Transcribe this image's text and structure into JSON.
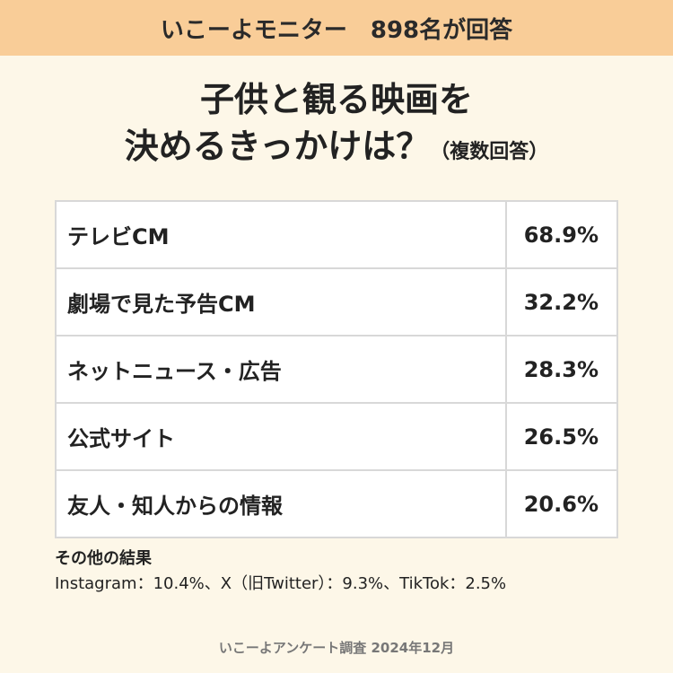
{
  "banner": "いこーよモニター　898名が回答",
  "title": {
    "line1": "子供と観る映画を",
    "line2": "決めるきっかけは？",
    "note": "（複数回答）"
  },
  "chart_data": {
    "type": "table",
    "rows": [
      {
        "label": "テレビCM",
        "value": "68.9%"
      },
      {
        "label": "劇場で見た予告CM",
        "value": "32.2%"
      },
      {
        "label": "ネットニュース・広告",
        "value": "28.3%"
      },
      {
        "label": "公式サイト",
        "value": "26.5%"
      },
      {
        "label": "友人・知人からの情報",
        "value": "20.6%"
      }
    ]
  },
  "other": {
    "heading": "その他の結果",
    "text": "Instagram：10.4%、X（旧Twitter）：9.3%、TikTok：2.5%"
  },
  "source": "いこーよアンケート調査 2024年12月"
}
